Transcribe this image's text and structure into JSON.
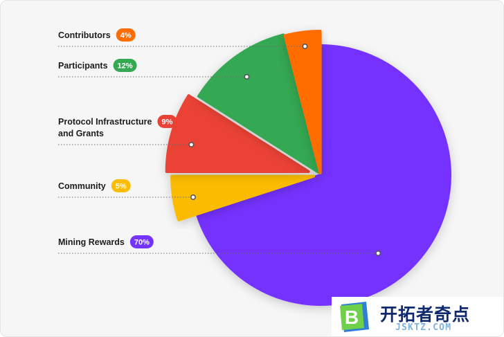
{
  "chart_data": {
    "type": "pie",
    "slices": [
      {
        "label": "Mining Rewards",
        "value": 70,
        "pct_label": "70%",
        "color": "#7433ff"
      },
      {
        "label": "Community",
        "value": 5,
        "pct_label": "5%",
        "color": "#fbbc05"
      },
      {
        "label": "Protocol Infrastructure and Grants",
        "label_lines": [
          "Protocol Infrastructure",
          "and Grants"
        ],
        "value": 9,
        "pct_label": "9%",
        "color": "#ea4335"
      },
      {
        "label": "Participants",
        "value": 12,
        "pct_label": "12%",
        "color": "#34a853"
      },
      {
        "label": "Contributors",
        "value": 4,
        "pct_label": "4%",
        "color": "#ff6d00"
      }
    ],
    "legend_order": [
      "Contributors",
      "Participants",
      "Protocol Infrastructure and Grants",
      "Community",
      "Mining Rewards"
    ]
  },
  "watermark": {
    "title": "开拓者奇点",
    "subtitle": "JSKTZ.COM",
    "logo_letter": "B"
  }
}
